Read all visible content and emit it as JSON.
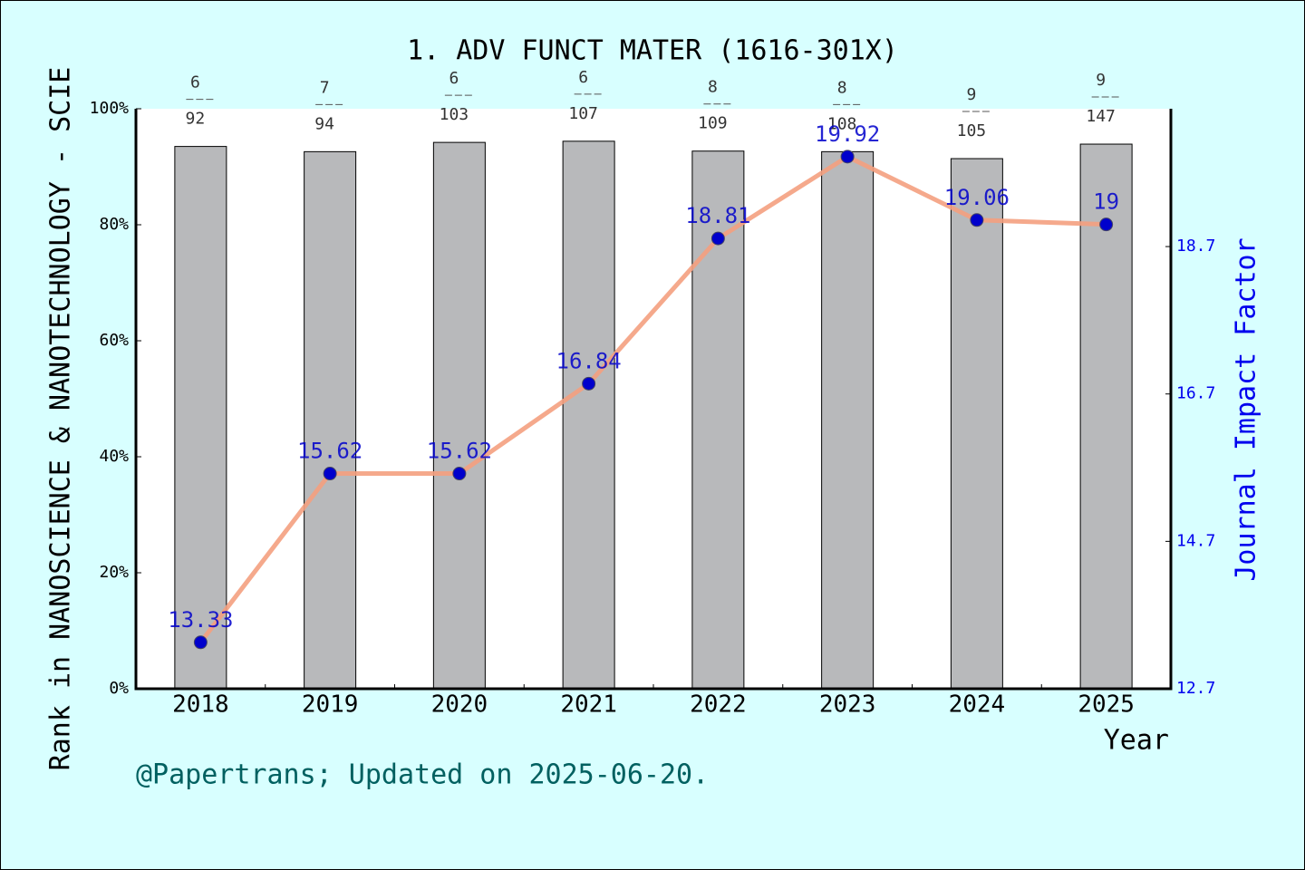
{
  "chart_data": {
    "type": "bar",
    "title": "1. ADV FUNCT MATER (1616-301X)",
    "ylabel": "Rank in NANOSCIENCE & NANOTECHNOLOGY - SCIE",
    "y2label": "Journal Impact Factor",
    "xlabel": "Year",
    "footer": "@Papertrans; Updated on 2025-06-20.",
    "categories": [
      "2018",
      "2019",
      "2020",
      "2021",
      "2022",
      "2023",
      "2024",
      "2025"
    ],
    "ylim": [
      0,
      100
    ],
    "yticks": [
      {
        "value": 0,
        "label": "0%"
      },
      {
        "value": 20,
        "label": "20%"
      },
      {
        "value": 40,
        "label": "40%"
      },
      {
        "value": 60,
        "label": "60%"
      },
      {
        "value": 80,
        "label": "80%"
      },
      {
        "value": 100,
        "label": "100%"
      }
    ],
    "y2lim": [
      12.7,
      20.57
    ],
    "y2ticks": [
      12.7,
      14.7,
      16.7,
      18.7
    ],
    "ranks": [
      6,
      7,
      6,
      6,
      8,
      8,
      9,
      9
    ],
    "totals": [
      92,
      94,
      103,
      107,
      109,
      108,
      105,
      147
    ],
    "series": [
      {
        "type": "bar",
        "color": "#b8b9bb",
        "values": [
          93.5,
          92.6,
          94.2,
          94.4,
          92.7,
          92.6,
          91.4,
          93.9
        ]
      },
      {
        "type": "line",
        "axis": "y2",
        "color": "#f4a07f",
        "marker_color": "#0000cc",
        "values": [
          13.33,
          15.62,
          15.62,
          16.84,
          18.81,
          19.92,
          19.06,
          19
        ]
      }
    ]
  }
}
